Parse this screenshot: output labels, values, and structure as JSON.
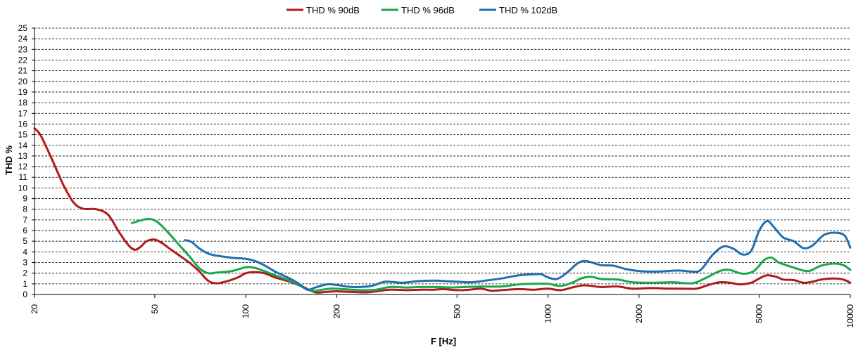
{
  "chart_data": {
    "type": "line",
    "xlabel": "F [Hz]",
    "ylabel": "THD %",
    "x_scale": "log",
    "xlim": [
      20,
      10000
    ],
    "ylim": [
      0,
      25
    ],
    "x_ticks": [
      20,
      50,
      100,
      200,
      500,
      1000,
      2000,
      5000,
      10000
    ],
    "x_tick_labels": [
      "20",
      "50",
      "100",
      "200",
      "500",
      "1000",
      "2000",
      "5000",
      "10000"
    ],
    "y_ticks": [
      0,
      1,
      2,
      3,
      4,
      5,
      6,
      7,
      8,
      9,
      10,
      11,
      12,
      13,
      14,
      15,
      16,
      17,
      18,
      19,
      20,
      21,
      22,
      23,
      24,
      25
    ],
    "grid": "horizontal dashed",
    "legend_position": "top-center",
    "series": [
      {
        "name": "THD % 90dB",
        "color": "#b01a1a",
        "points": [
          [
            20,
            15.6
          ],
          [
            21,
            14.9
          ],
          [
            23,
            12.5
          ],
          [
            25,
            10.2
          ],
          [
            27,
            8.6
          ],
          [
            29,
            8.05
          ],
          [
            32,
            8.0
          ],
          [
            35,
            7.5
          ],
          [
            38,
            5.9
          ],
          [
            41,
            4.6
          ],
          [
            43,
            4.2
          ],
          [
            45,
            4.5
          ],
          [
            47,
            5.0
          ],
          [
            50,
            5.15
          ],
          [
            53,
            4.8
          ],
          [
            56,
            4.3
          ],
          [
            60,
            3.7
          ],
          [
            65,
            3.0
          ],
          [
            70,
            2.2
          ],
          [
            75,
            1.3
          ],
          [
            80,
            1.05
          ],
          [
            88,
            1.3
          ],
          [
            95,
            1.65
          ],
          [
            100,
            2.0
          ],
          [
            107,
            2.1
          ],
          [
            115,
            2.0
          ],
          [
            125,
            1.6
          ],
          [
            140,
            1.2
          ],
          [
            155,
            0.7
          ],
          [
            170,
            0.2
          ],
          [
            185,
            0.25
          ],
          [
            200,
            0.3
          ],
          [
            220,
            0.25
          ],
          [
            250,
            0.2
          ],
          [
            270,
            0.3
          ],
          [
            300,
            0.45
          ],
          [
            340,
            0.4
          ],
          [
            380,
            0.45
          ],
          [
            420,
            0.45
          ],
          [
            450,
            0.5
          ],
          [
            500,
            0.4
          ],
          [
            550,
            0.45
          ],
          [
            600,
            0.55
          ],
          [
            650,
            0.35
          ],
          [
            700,
            0.4
          ],
          [
            800,
            0.5
          ],
          [
            900,
            0.45
          ],
          [
            1000,
            0.55
          ],
          [
            1100,
            0.4
          ],
          [
            1200,
            0.65
          ],
          [
            1300,
            0.85
          ],
          [
            1400,
            0.8
          ],
          [
            1500,
            0.7
          ],
          [
            1700,
            0.75
          ],
          [
            1900,
            0.55
          ],
          [
            2200,
            0.6
          ],
          [
            2500,
            0.55
          ],
          [
            2800,
            0.55
          ],
          [
            3100,
            0.55
          ],
          [
            3400,
            0.9
          ],
          [
            3700,
            1.15
          ],
          [
            4000,
            1.1
          ],
          [
            4300,
            0.95
          ],
          [
            4700,
            1.1
          ],
          [
            5000,
            1.5
          ],
          [
            5300,
            1.8
          ],
          [
            5700,
            1.65
          ],
          [
            6000,
            1.4
          ],
          [
            6500,
            1.35
          ],
          [
            7000,
            1.1
          ],
          [
            7500,
            1.2
          ],
          [
            8000,
            1.4
          ],
          [
            8700,
            1.5
          ],
          [
            9300,
            1.45
          ],
          [
            9700,
            1.3
          ],
          [
            10000,
            1.1
          ]
        ]
      },
      {
        "name": "THD % 96dB",
        "color": "#1aa84a",
        "points": [
          [
            42,
            6.7
          ],
          [
            45,
            6.95
          ],
          [
            48,
            7.1
          ],
          [
            51,
            6.8
          ],
          [
            55,
            5.9
          ],
          [
            60,
            4.7
          ],
          [
            65,
            3.6
          ],
          [
            70,
            2.5
          ],
          [
            75,
            2.0
          ],
          [
            80,
            2.05
          ],
          [
            90,
            2.2
          ],
          [
            100,
            2.55
          ],
          [
            107,
            2.5
          ],
          [
            115,
            2.2
          ],
          [
            125,
            1.8
          ],
          [
            140,
            1.3
          ],
          [
            150,
            0.9
          ],
          [
            160,
            0.45
          ],
          [
            170,
            0.35
          ],
          [
            190,
            0.55
          ],
          [
            210,
            0.5
          ],
          [
            240,
            0.4
          ],
          [
            270,
            0.45
          ],
          [
            300,
            0.7
          ],
          [
            340,
            0.65
          ],
          [
            380,
            0.7
          ],
          [
            430,
            0.7
          ],
          [
            480,
            0.65
          ],
          [
            530,
            0.7
          ],
          [
            600,
            0.75
          ],
          [
            700,
            0.75
          ],
          [
            800,
            0.95
          ],
          [
            900,
            1.0
          ],
          [
            1000,
            1.0
          ],
          [
            1100,
            0.8
          ],
          [
            1200,
            1.1
          ],
          [
            1300,
            1.55
          ],
          [
            1400,
            1.65
          ],
          [
            1500,
            1.45
          ],
          [
            1700,
            1.4
          ],
          [
            1900,
            1.15
          ],
          [
            2200,
            1.1
          ],
          [
            2600,
            1.15
          ],
          [
            3000,
            1.05
          ],
          [
            3300,
            1.5
          ],
          [
            3700,
            2.2
          ],
          [
            4000,
            2.3
          ],
          [
            4400,
            1.95
          ],
          [
            4800,
            2.2
          ],
          [
            5200,
            3.25
          ],
          [
            5500,
            3.45
          ],
          [
            5800,
            3.0
          ],
          [
            6300,
            2.65
          ],
          [
            6800,
            2.35
          ],
          [
            7300,
            2.2
          ],
          [
            8000,
            2.7
          ],
          [
            8800,
            2.9
          ],
          [
            9500,
            2.75
          ],
          [
            10000,
            2.3
          ]
        ]
      },
      {
        "name": "THD % 102dB",
        "color": "#1f6fb0",
        "points": [
          [
            63,
            5.1
          ],
          [
            66,
            4.95
          ],
          [
            70,
            4.35
          ],
          [
            75,
            3.85
          ],
          [
            80,
            3.65
          ],
          [
            90,
            3.45
          ],
          [
            100,
            3.35
          ],
          [
            107,
            3.15
          ],
          [
            115,
            2.75
          ],
          [
            125,
            2.15
          ],
          [
            140,
            1.5
          ],
          [
            150,
            1.0
          ],
          [
            160,
            0.45
          ],
          [
            170,
            0.65
          ],
          [
            185,
            0.95
          ],
          [
            200,
            0.9
          ],
          [
            225,
            0.7
          ],
          [
            260,
            0.8
          ],
          [
            290,
            1.2
          ],
          [
            330,
            1.1
          ],
          [
            370,
            1.25
          ],
          [
            420,
            1.3
          ],
          [
            460,
            1.25
          ],
          [
            500,
            1.2
          ],
          [
            560,
            1.15
          ],
          [
            620,
            1.3
          ],
          [
            700,
            1.5
          ],
          [
            800,
            1.8
          ],
          [
            900,
            1.9
          ],
          [
            950,
            1.9
          ],
          [
            1000,
            1.6
          ],
          [
            1070,
            1.45
          ],
          [
            1150,
            2.0
          ],
          [
            1250,
            2.9
          ],
          [
            1320,
            3.15
          ],
          [
            1400,
            3.0
          ],
          [
            1500,
            2.75
          ],
          [
            1650,
            2.7
          ],
          [
            1800,
            2.4
          ],
          [
            2000,
            2.2
          ],
          [
            2300,
            2.15
          ],
          [
            2700,
            2.25
          ],
          [
            3000,
            2.15
          ],
          [
            3200,
            2.3
          ],
          [
            3500,
            3.7
          ],
          [
            3800,
            4.5
          ],
          [
            4100,
            4.3
          ],
          [
            4400,
            3.75
          ],
          [
            4700,
            4.1
          ],
          [
            5000,
            6.0
          ],
          [
            5300,
            6.9
          ],
          [
            5600,
            6.3
          ],
          [
            6000,
            5.35
          ],
          [
            6500,
            5.0
          ],
          [
            7000,
            4.35
          ],
          [
            7500,
            4.6
          ],
          [
            8200,
            5.6
          ],
          [
            9000,
            5.8
          ],
          [
            9600,
            5.5
          ],
          [
            10000,
            4.4
          ]
        ]
      }
    ]
  }
}
